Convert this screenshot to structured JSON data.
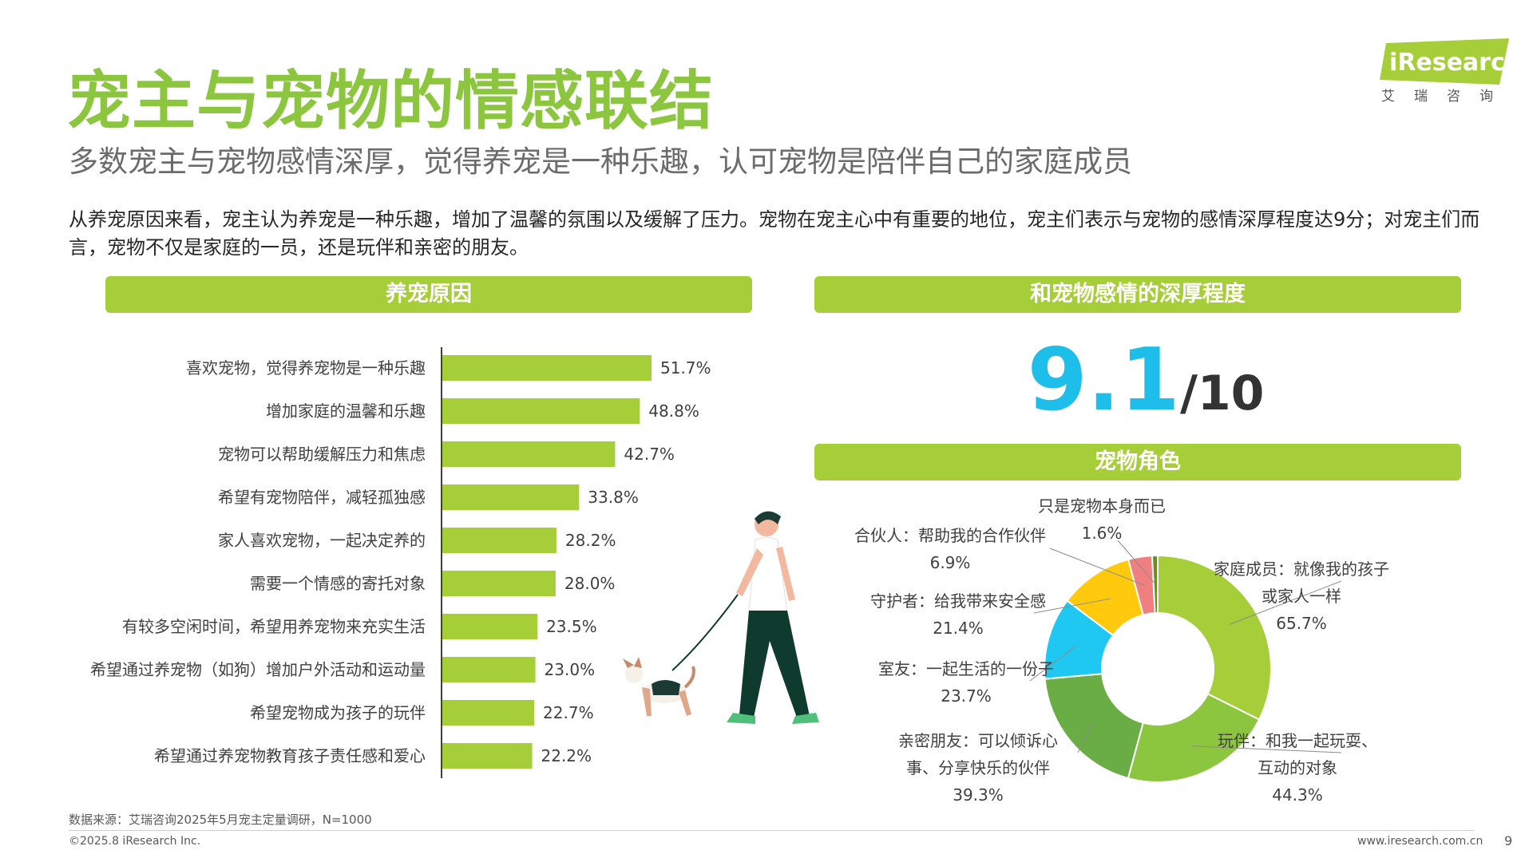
{
  "header": {
    "title": "宠主与宠物的情感联结",
    "subtitle": "多数宠主与宠物感情深厚，觉得养宠是一种乐趣，认可宠物是陪伴自己的家庭成员",
    "intro": "从养宠原因来看，宠主认为养宠是一种乐趣，增加了温馨的氛围以及缓解了压力。宠物在宠主心中有重要的地位，宠主们表示与宠物的感情深厚程度达9分；对宠主们而言，宠物不仅是家庭的一员，还是玩伴和亲密的朋友。"
  },
  "logo": {
    "name": "iResearch",
    "sub": "艾瑞咨询"
  },
  "sections": {
    "reasons": "养宠原因",
    "depth": "和宠物感情的深厚程度",
    "roles": "宠物角色"
  },
  "score": {
    "value": "9.1",
    "suffix": "/10"
  },
  "chart_data": [
    {
      "type": "bar",
      "orientation": "horizontal",
      "title": "养宠原因",
      "categories": [
        "喜欢宠物，觉得养宠物是一种乐趣",
        "增加家庭的温馨和乐趣",
        "宠物可以帮助缓解压力和焦虑",
        "希望有宠物陪伴，减轻孤独感",
        "家人喜欢宠物，一起决定养的",
        "需要一个情感的寄托对象",
        "有较多空闲时间，希望用养宠物来充实生活",
        "希望通过养宠物（如狗）增加户外活动和运动量",
        "希望宠物成为孩子的玩伴",
        "希望通过养宠物教育孩子责任感和爱心"
      ],
      "values": [
        51.7,
        48.8,
        42.7,
        33.8,
        28.2,
        28.0,
        23.5,
        23.0,
        22.7,
        22.2
      ],
      "value_labels": [
        "51.7%",
        "48.8%",
        "42.7%",
        "33.8%",
        "28.2%",
        "28.0%",
        "23.5%",
        "23.0%",
        "22.7%",
        "22.2%"
      ],
      "color": "#a6ce39",
      "xlim": [
        0,
        60
      ]
    },
    {
      "type": "pie",
      "variant": "donut",
      "title": "宠物角色",
      "slices": [
        {
          "name": "家庭成员：就像我的孩子或家人一样",
          "label_lines": [
            "家庭成员：就像我的孩子",
            "或家人一样"
          ],
          "value": 65.7,
          "value_label": "65.7%",
          "color": "#a6ce39"
        },
        {
          "name": "玩伴：和我一起玩耍、互动的对象",
          "label_lines": [
            "玩伴：和我一起玩耍、",
            "互动的对象"
          ],
          "value": 44.3,
          "value_label": "44.3%",
          "color": "#8cc63f"
        },
        {
          "name": "亲密朋友：可以倾诉心事、分享快乐的伙伴",
          "label_lines": [
            "亲密朋友：可以倾诉心",
            "事、分享快乐的伙伴"
          ],
          "value": 39.3,
          "value_label": "39.3%",
          "color": "#6aad45"
        },
        {
          "name": "室友：一起生活的一份子",
          "label_lines": [
            "室友：一起生活的一份子"
          ],
          "value": 23.7,
          "value_label": "23.7%",
          "color": "#1ec8f0"
        },
        {
          "name": "守护者：给我带来安全感",
          "label_lines": [
            "守护者：给我带来安全感"
          ],
          "value": 21.4,
          "value_label": "21.4%",
          "color": "#ffc90e"
        },
        {
          "name": "合伙人：帮助我的合作伙伴",
          "label_lines": [
            "合伙人：帮助我的合作伙伴"
          ],
          "value": 6.9,
          "value_label": "6.9%",
          "color": "#f08080"
        },
        {
          "name": "只是宠物本身而已",
          "label_lines": [
            "只是宠物本身而已"
          ],
          "value": 1.6,
          "value_label": "1.6%",
          "color": "#6b8e23"
        }
      ]
    }
  ],
  "footer": {
    "source": "数据来源：艾瑞咨询2025年5月宠主定量调研，N=1000",
    "copyright": "©2025.8 iResearch Inc.",
    "website": "www.iresearch.com.cn",
    "page": "9"
  }
}
